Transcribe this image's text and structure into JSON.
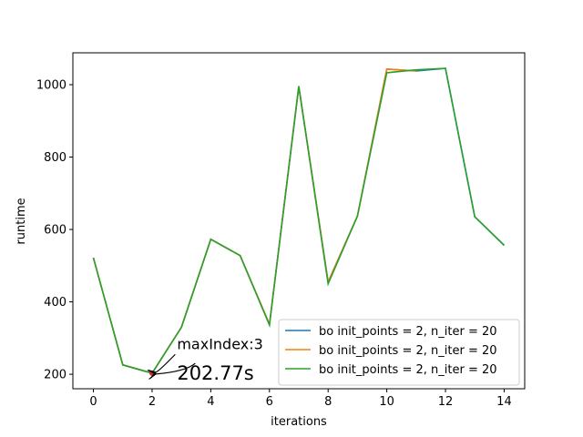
{
  "chart_data": {
    "type": "line",
    "title": "",
    "xlabel": "iterations",
    "ylabel": "runtime",
    "xlim": [
      -0.7,
      14.7
    ],
    "ylim": [
      160,
      1088
    ],
    "xticks": [
      0,
      2,
      4,
      6,
      8,
      10,
      12,
      14
    ],
    "yticks": [
      200,
      400,
      600,
      800,
      1000
    ],
    "grid": false,
    "legend_position": "lower-right",
    "series": [
      {
        "name": "bo  init_points = 2, n_iter = 20",
        "color": "#1f77b4",
        "x": [
          0,
          1,
          2,
          3,
          4,
          5,
          6,
          7,
          8,
          9,
          10,
          11,
          12,
          13,
          14
        ],
        "y": [
          522,
          226,
          203,
          330,
          573,
          528,
          338,
          995,
          455,
          637,
          1043,
          1038,
          1045,
          635,
          556
        ]
      },
      {
        "name": "bo  init_points = 2, n_iter = 20",
        "color": "#ff7f0e",
        "x": [
          0,
          1,
          2,
          3,
          4,
          5,
          6,
          7,
          8,
          9,
          10,
          11
        ],
        "y": [
          522,
          226,
          203,
          330,
          573,
          528,
          338,
          995,
          455,
          637,
          1043,
          1038
        ]
      },
      {
        "name": "bo  init_points = 2, n_iter = 20",
        "color": "#2ca02c",
        "x": [
          0,
          1,
          2,
          3,
          4,
          5,
          6,
          7,
          8,
          9,
          10,
          11,
          12,
          13,
          14
        ],
        "y": [
          522,
          226,
          203,
          330,
          573,
          528,
          336,
          996,
          450,
          637,
          1033,
          1041,
          1045,
          635,
          556
        ]
      }
    ],
    "highlight_point": {
      "x": 2,
      "y": 203,
      "color": "#d62728"
    },
    "annotations": [
      {
        "text": "maxIndex:3",
        "x": 2.85,
        "y": 270,
        "size": "small"
      },
      {
        "text": "202.77s",
        "x": 2.85,
        "y": 185,
        "size": "large"
      }
    ]
  }
}
